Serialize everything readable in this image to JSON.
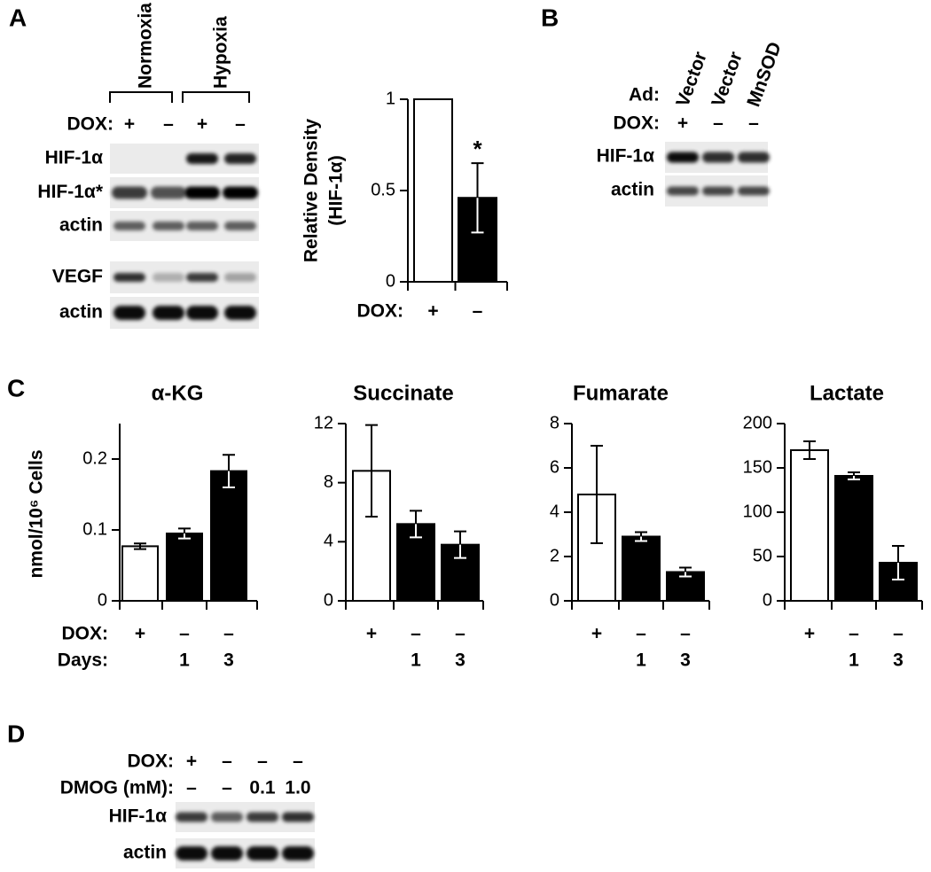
{
  "panels": [
    "A",
    "B",
    "C",
    "D"
  ],
  "blot_a": {
    "groups": [
      "Normoxia",
      "Hypoxia"
    ],
    "dox_label": "DOX:",
    "dox": [
      "+",
      "–",
      "+",
      "–"
    ],
    "rows": [
      "HIF-1α",
      "HIF-1α*",
      "actin",
      "VEGF",
      "actin"
    ]
  },
  "blot_b": {
    "ad_label": "Ad:",
    "ad": [
      "Vector",
      "Vector",
      "MnSOD"
    ],
    "dox_label": "DOX:",
    "dox": [
      "+",
      "–",
      "–"
    ],
    "rows": [
      "HIF-1α",
      "actin"
    ]
  },
  "blot_d": {
    "dox_label": "DOX:",
    "dox": [
      "+",
      "–",
      "–",
      "–"
    ],
    "dmog_label": "DMOG (mM):",
    "dmog": [
      "–",
      "–",
      "0.1",
      "1.0"
    ],
    "rows": [
      "HIF-1α",
      "actin"
    ]
  },
  "chart_data": [
    {
      "type": "bar",
      "ylabel": [
        "Relative Density",
        "(HIF-1α)"
      ],
      "row_labels": [
        "DOX:"
      ],
      "categories": [
        "+",
        "–"
      ],
      "values": [
        1,
        0.46
      ],
      "errors": [
        null,
        0.19
      ],
      "annotations": [
        null,
        "*"
      ],
      "colors": [
        "#ffffff",
        "#000000"
      ],
      "ylim": [
        0,
        1
      ],
      "yticks": [
        0,
        0.5,
        1
      ]
    },
    {
      "type": "bar",
      "title": "α-KG",
      "ylabel": [
        "nmol/10⁶ Cells"
      ],
      "row_labels": [
        "DOX:",
        "Days:"
      ],
      "categories": [
        "+",
        "–",
        "–"
      ],
      "days": [
        null,
        "1",
        "3"
      ],
      "values": [
        0.077,
        0.095,
        0.183
      ],
      "errors": [
        0.004,
        0.007,
        0.023
      ],
      "colors": [
        "#ffffff",
        "#000000",
        "#000000"
      ],
      "ylim": [
        0,
        0.25
      ],
      "yticks": [
        0,
        0.1,
        0.2
      ]
    },
    {
      "type": "bar",
      "title": "Succinate",
      "categories": [
        "+",
        "–",
        "–"
      ],
      "days": [
        null,
        "1",
        "3"
      ],
      "values": [
        8.8,
        5.2,
        3.8
      ],
      "errors": [
        3.1,
        0.9,
        0.9
      ],
      "colors": [
        "#ffffff",
        "#000000",
        "#000000"
      ],
      "ylim": [
        0,
        12
      ],
      "yticks": [
        0,
        4,
        8,
        12
      ]
    },
    {
      "type": "bar",
      "title": "Fumarate",
      "categories": [
        "+",
        "–",
        "–"
      ],
      "days": [
        null,
        "1",
        "3"
      ],
      "values": [
        4.8,
        2.9,
        1.3
      ],
      "errors": [
        2.2,
        0.2,
        0.2
      ],
      "colors": [
        "#ffffff",
        "#000000",
        "#000000"
      ],
      "ylim": [
        0,
        8
      ],
      "yticks": [
        0,
        2,
        4,
        6,
        8
      ]
    },
    {
      "type": "bar",
      "title": "Lactate",
      "categories": [
        "+",
        "–",
        "–"
      ],
      "days": [
        null,
        "1",
        "3"
      ],
      "values": [
        170,
        141,
        43
      ],
      "errors": [
        10,
        4,
        19
      ],
      "colors": [
        "#ffffff",
        "#000000",
        "#000000"
      ],
      "ylim": [
        0,
        200
      ],
      "yticks": [
        0,
        50,
        100,
        150,
        200
      ]
    }
  ]
}
